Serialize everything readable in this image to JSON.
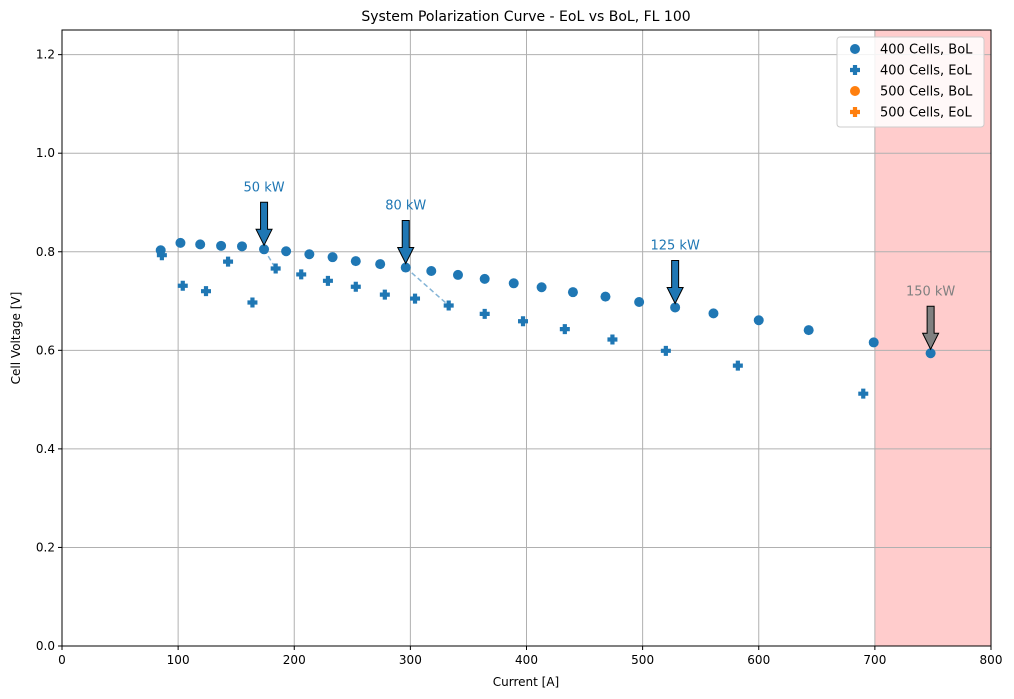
{
  "chart_data": {
    "type": "scatter",
    "title": "System Polarization Curve - EoL vs BoL, FL 100",
    "xlabel": "Current [A]",
    "ylabel": "Cell Voltage [V]",
    "xlim": [
      0,
      800
    ],
    "ylim": [
      0,
      1.25
    ],
    "x_ticks": [
      "0",
      "100",
      "200",
      "300",
      "400",
      "500",
      "600",
      "700",
      "800"
    ],
    "y_ticks": [
      "0.0",
      "0.2",
      "0.4",
      "0.6",
      "0.8",
      "1.0",
      "1.2"
    ],
    "grid": true,
    "legend_position": "top-right",
    "shaded_region": {
      "x_from": 700,
      "x_to": 800,
      "color": "#ffcccc"
    },
    "series": [
      {
        "name": "400 Cells, BoL",
        "marker": "circle",
        "color": "#1f77b4",
        "x": [
          85,
          102,
          119,
          137,
          155,
          174,
          193,
          213,
          233,
          253,
          274,
          296,
          318,
          341,
          364,
          389,
          413,
          440,
          468,
          497,
          528,
          561,
          600,
          643,
          699,
          748
        ],
        "y": [
          0.803,
          0.818,
          0.815,
          0.812,
          0.811,
          0.805,
          0.801,
          0.795,
          0.789,
          0.781,
          0.775,
          0.768,
          0.761,
          0.753,
          0.745,
          0.736,
          0.728,
          0.718,
          0.709,
          0.698,
          0.687,
          0.675,
          0.661,
          0.641,
          0.616,
          0.594
        ]
      },
      {
        "name": "400 Cells, EoL",
        "marker": "plus",
        "color": "#1f77b4",
        "x": [
          86,
          104,
          124,
          143,
          164,
          184,
          206,
          229,
          253,
          278,
          304,
          333,
          364,
          397,
          433,
          474,
          520,
          582,
          690
        ],
        "y": [
          0.793,
          0.731,
          0.72,
          0.78,
          0.697,
          0.766,
          0.754,
          0.741,
          0.729,
          0.713,
          0.705,
          0.691,
          0.674,
          0.659,
          0.643,
          0.622,
          0.599,
          0.569,
          0.512
        ]
      },
      {
        "name": "500 Cells, BoL",
        "marker": "circle",
        "color": "#ff7f0e",
        "x": [],
        "y": []
      },
      {
        "name": "500 Cells, EoL",
        "marker": "plus",
        "color": "#ff7f0e",
        "x": [],
        "y": []
      }
    ],
    "connectors": [
      {
        "x": [
          174,
          184
        ],
        "y": [
          0.805,
          0.766
        ]
      },
      {
        "x": [
          296,
          333
        ],
        "y": [
          0.768,
          0.691
        ]
      }
    ],
    "annotations": [
      {
        "text": "50 kW",
        "x": 174,
        "y": 0.805,
        "color": "#1f77b4"
      },
      {
        "text": "80 kW",
        "x": 296,
        "y": 0.768,
        "color": "#1f77b4"
      },
      {
        "text": "125 kW",
        "x": 528,
        "y": 0.687,
        "color": "#1f77b4"
      },
      {
        "text": "150 kW",
        "x": 748,
        "y": 0.594,
        "color": "#808080"
      }
    ]
  }
}
